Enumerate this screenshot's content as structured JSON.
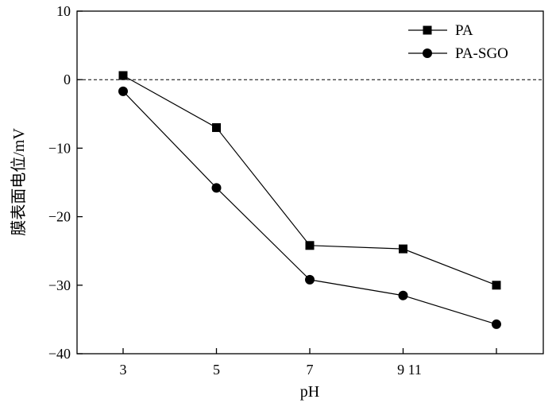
{
  "chart_data": {
    "type": "line",
    "xlabel": "pH",
    "ylabel": "膜表面电位/mV",
    "ylim": [
      -40,
      10
    ],
    "yticks": [
      10,
      0,
      -10,
      -20,
      -30,
      -40
    ],
    "xticks": [
      {
        "value": 3,
        "label": "3"
      },
      {
        "value": 5,
        "label": "5"
      },
      {
        "value": 7,
        "label": "7"
      },
      {
        "value": 9,
        "label": "9 11"
      }
    ],
    "x": [
      3,
      5,
      7,
      9,
      11
    ],
    "series": [
      {
        "name": "PA",
        "marker": "square",
        "values": [
          0.6,
          -7.0,
          -24.2,
          -24.7,
          -30.0
        ]
      },
      {
        "name": "PA-SGO",
        "marker": "circle",
        "values": [
          -1.7,
          -15.8,
          -29.2,
          -31.5,
          -35.7
        ]
      }
    ],
    "reference_line": {
      "y": 0,
      "style": "dashed"
    },
    "legend": "top-right",
    "grid": false
  }
}
